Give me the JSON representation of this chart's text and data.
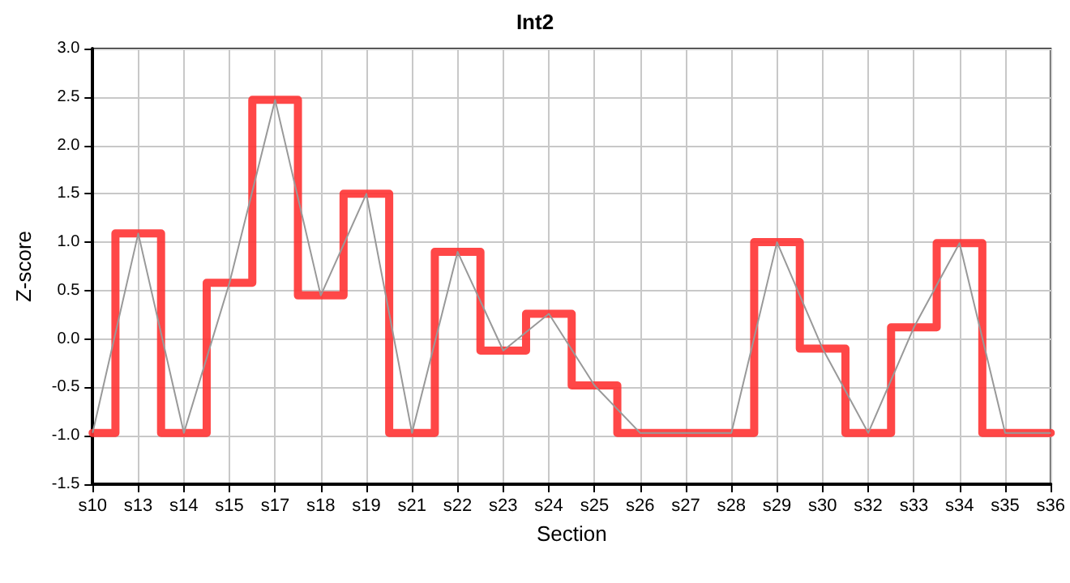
{
  "chart_data": {
    "type": "line",
    "title": "Int2",
    "xlabel": "Section",
    "ylabel": "Z-score",
    "categories": [
      "s10",
      "s13",
      "s14",
      "s15",
      "s17",
      "s18",
      "s19",
      "s21",
      "s22",
      "s23",
      "s24",
      "s25",
      "s26",
      "s27",
      "s28",
      "s29",
      "s30",
      "s32",
      "s33",
      "s34",
      "s35",
      "s36"
    ],
    "series": [
      {
        "type": "step",
        "color": "#ff3333",
        "values": [
          -0.97,
          1.09,
          -0.97,
          0.58,
          2.47,
          0.45,
          1.5,
          -0.97,
          0.9,
          -0.12,
          0.26,
          -0.48,
          -0.97,
          -0.97,
          -0.97,
          1.0,
          -0.1,
          -0.97,
          0.12,
          0.99,
          -0.97,
          -0.97
        ]
      },
      {
        "color": "#999999",
        "values": [
          -0.97,
          1.09,
          -0.97,
          0.58,
          2.47,
          0.45,
          1.5,
          -0.97,
          0.9,
          -0.12,
          0.26,
          -0.48,
          -0.97,
          -0.97,
          -0.97,
          1.0,
          -0.1,
          -0.97,
          0.12,
          0.99,
          -0.97,
          -0.97
        ]
      }
    ],
    "ylim": [
      -1.5,
      3.0
    ],
    "yticks": [
      -1.5,
      {
        "value": -1,
        "label": "-1.0"
      },
      -0.5,
      {
        "value": 0,
        "label": "0.0"
      },
      0.5,
      {
        "value": 1,
        "label": "1.0"
      },
      1.5,
      {
        "value": 2,
        "label": "2.0"
      },
      2.5,
      {
        "value": 3,
        "label": "3.0"
      }
    ],
    "grid": true,
    "marker": "none",
    "line_style": "solid"
  }
}
